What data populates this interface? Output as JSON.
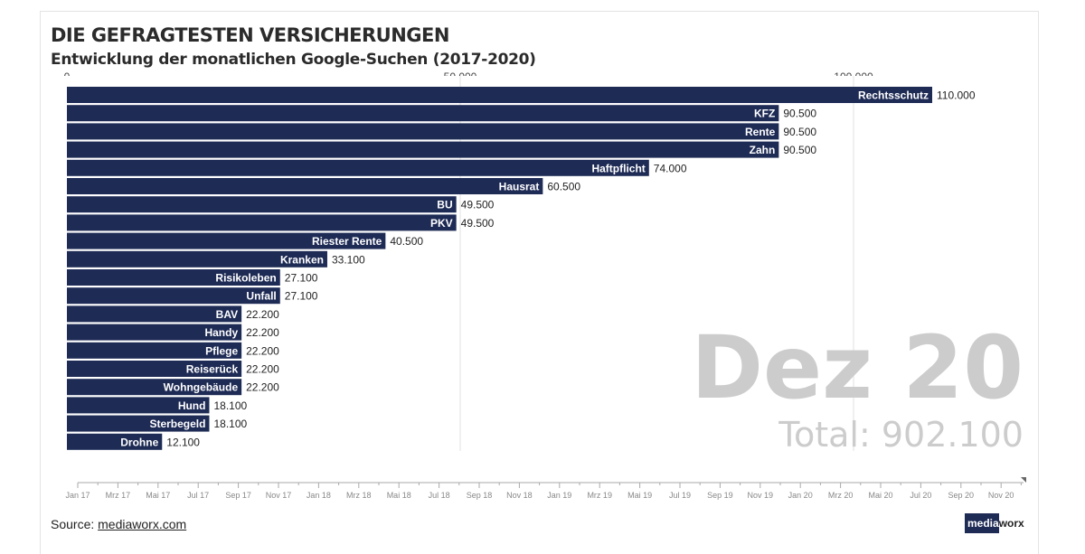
{
  "header": {
    "title": "DIE GEFRAGTESTEN VERSICHERUNGEN",
    "subtitle": "Entwicklung der monatlichen Google-Suchen (2017-2020)"
  },
  "footer": {
    "source_prefix": "Source: ",
    "source_link": "mediaworx.com",
    "logo_part1": "media",
    "logo_part2": "worx"
  },
  "colors": {
    "bar": "#1e2b55",
    "grid": "#e2e2e2",
    "watermark": "#cccccc"
  },
  "chart_data": {
    "type": "bar",
    "orientation": "horizontal",
    "date_label": "Dez 20",
    "total_label": "Total: 902.100",
    "x_ticks": [
      {
        "value": 0,
        "label": "0"
      },
      {
        "value": 50000,
        "label": "50.000"
      },
      {
        "value": 100000,
        "label": "100.000"
      }
    ],
    "xlim": [
      0,
      121000
    ],
    "grid": true,
    "bars": [
      {
        "name": "Rechtsschutz",
        "value": 110000,
        "label": "110.000"
      },
      {
        "name": "KFZ",
        "value": 90500,
        "label": "90.500"
      },
      {
        "name": "Rente",
        "value": 90500,
        "label": "90.500"
      },
      {
        "name": "Zahn",
        "value": 90500,
        "label": "90.500"
      },
      {
        "name": "Haftpflicht",
        "value": 74000,
        "label": "74.000"
      },
      {
        "name": "Hausrat",
        "value": 60500,
        "label": "60.500"
      },
      {
        "name": "BU",
        "value": 49500,
        "label": "49.500"
      },
      {
        "name": "PKV",
        "value": 49500,
        "label": "49.500"
      },
      {
        "name": "Riester Rente",
        "value": 40500,
        "label": "40.500"
      },
      {
        "name": "Kranken",
        "value": 33100,
        "label": "33.100"
      },
      {
        "name": "Risikoleben",
        "value": 27100,
        "label": "27.100"
      },
      {
        "name": "Unfall",
        "value": 27100,
        "label": "27.100"
      },
      {
        "name": "BAV",
        "value": 22200,
        "label": "22.200"
      },
      {
        "name": "Handy",
        "value": 22200,
        "label": "22.200"
      },
      {
        "name": "Pflege",
        "value": 22200,
        "label": "22.200"
      },
      {
        "name": "Reiserück",
        "value": 22200,
        "label": "22.200"
      },
      {
        "name": "Wohngebäude",
        "value": 22200,
        "label": "22.200"
      },
      {
        "name": "Hund",
        "value": 18100,
        "label": "18.100"
      },
      {
        "name": "Sterbegeld",
        "value": 18100,
        "label": "18.100"
      },
      {
        "name": "Drohne",
        "value": 12100,
        "label": "12.100"
      }
    ],
    "timeline": {
      "labels": [
        "Jan 17",
        "Mrz 17",
        "Mai 17",
        "Jul 17",
        "Sep 17",
        "Nov 17",
        "Jan 18",
        "Mrz 18",
        "Mai 18",
        "Jul 18",
        "Sep 18",
        "Nov 18",
        "Jan 19",
        "Mrz 19",
        "Mai 19",
        "Jul 19",
        "Sep 19",
        "Nov 19",
        "Jan 20",
        "Mrz 20",
        "Mai 20",
        "Jul 20",
        "Sep 20",
        "Nov 20"
      ],
      "current": "Dez 20"
    }
  }
}
